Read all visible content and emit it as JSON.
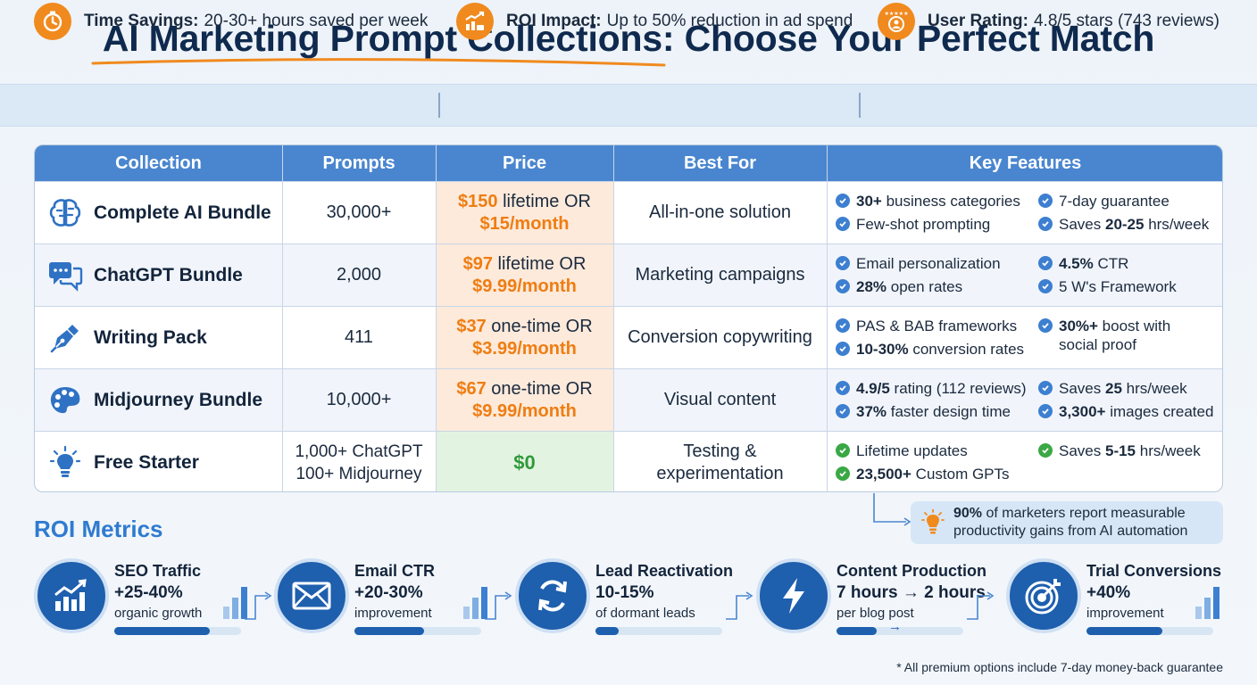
{
  "title": "AI Marketing Prompt Collections: Choose Your Perfect Match",
  "stats": [
    {
      "icon": "stopwatch-icon",
      "label": "Time Savings:",
      "value": "20-30+ hours saved per week"
    },
    {
      "icon": "roi-chart-icon",
      "label": "ROI Impact:",
      "value": "Up to 50% reduction in ad spend"
    },
    {
      "icon": "user-rating-icon",
      "label": "User Rating:",
      "value": "4.8/5 stars (743 reviews)"
    }
  ],
  "table": {
    "headers": [
      "Collection",
      "Prompts",
      "Price",
      "Best For",
      "Key Features"
    ],
    "rows": [
      {
        "icon": "brain-icon",
        "name": "Complete AI Bundle",
        "prompts": "30,000+",
        "price_a": "$150",
        "price_a_rest": " lifetime OR",
        "price_b": "$15/month",
        "best_for": "All-in-one solution",
        "best_for_2": "",
        "features": [
          {
            "b": "30+",
            "t": " business categories"
          },
          {
            "b": "",
            "t": "7-day guarantee"
          },
          {
            "b": "",
            "t": "Few-shot prompting"
          },
          {
            "b": "20-25",
            "t": " hrs/week",
            "pre": "Saves "
          }
        ]
      },
      {
        "icon": "chat-bubbles-icon",
        "name": "ChatGPT Bundle",
        "prompts": "2,000",
        "price_a": "$97",
        "price_a_rest": " lifetime OR",
        "price_b": "$9.99/month",
        "best_for": "Marketing campaigns",
        "best_for_2": "",
        "features": [
          {
            "b": "",
            "t": "Email personalization"
          },
          {
            "b": "4.5%",
            "t": " CTR"
          },
          {
            "b": "28%",
            "t": " open rates"
          },
          {
            "b": "",
            "t": "5 W's Framework"
          }
        ]
      },
      {
        "icon": "pen-nib-icon",
        "name": "Writing Pack",
        "prompts": "411",
        "price_a": "$37",
        "price_a_rest": " one-time OR",
        "price_b": "$3.99/month",
        "best_for": "Conversion copywriting",
        "best_for_2": "",
        "features": [
          {
            "b": "",
            "t": "PAS & BAB frameworks"
          },
          {
            "b": "30%+",
            "t": " boost with"
          },
          {
            "b": "10-30%",
            "t": " conversion rates"
          },
          {
            "b": "",
            "t": "social proof"
          }
        ]
      },
      {
        "icon": "palette-icon",
        "name": "Midjourney Bundle",
        "prompts": "10,000+",
        "price_a": "$67",
        "price_a_rest": " one-time OR",
        "price_b": "$9.99/month",
        "best_for": "Visual content",
        "best_for_2": "",
        "features": [
          {
            "b": "4.9/5",
            "t": " rating (112 reviews)"
          },
          {
            "b": "25",
            "t": " hrs/week",
            "pre": "Saves "
          },
          {
            "b": "37%",
            "t": " faster design time"
          },
          {
            "b": "3,300+",
            "t": " images created"
          }
        ]
      },
      {
        "icon": "lightbulb-icon",
        "name": "Free Starter",
        "prompts": "1,000+ ChatGPT",
        "prompts_2": "100+ Midjourney",
        "price_a": "$0",
        "price_a_rest": "",
        "price_b": "",
        "best_for": "Testing &",
        "best_for_2": "experimentation",
        "features": [
          {
            "b": "",
            "t": "Lifetime updates"
          },
          {
            "b": "5-15",
            "t": " hrs/week",
            "pre": "Saves "
          },
          {
            "b": "23,500+",
            "t": " Custom GPTs"
          }
        ]
      }
    ]
  },
  "callout": {
    "b": "90%",
    "t": " of marketers report measurable",
    "t2": "productivity gains from AI automation"
  },
  "roi_title": "ROI Metrics",
  "metrics": [
    {
      "icon": "growth-chart-icon",
      "name": "SEO Traffic",
      "value": "+25-40%",
      "sub": "organic growth",
      "progress": 0.75
    },
    {
      "icon": "envelope-icon",
      "name": "Email CTR",
      "value": "+20-30%",
      "sub": "improvement",
      "progress": 0.55
    },
    {
      "icon": "refresh-icon",
      "name": "Lead Reactivation",
      "value": "10-15%",
      "sub": "of dormant leads",
      "progress": 0.18
    },
    {
      "icon": "lightning-icon",
      "name": "Content Production",
      "value": "7 hours → 2 hours",
      "sub": "per blog post",
      "progress": 0.32
    },
    {
      "icon": "target-icon",
      "name": "Trial Conversions",
      "value": "+40%",
      "sub": "improvement",
      "progress": 0.6
    }
  ],
  "footnote": "* All premium options include 7-day money-back guarantee",
  "colors": {
    "accent_orange": "#f08a1e",
    "header_blue": "#4a86cf",
    "navy": "#1e5fae",
    "free_green": "#2f9a3a"
  }
}
